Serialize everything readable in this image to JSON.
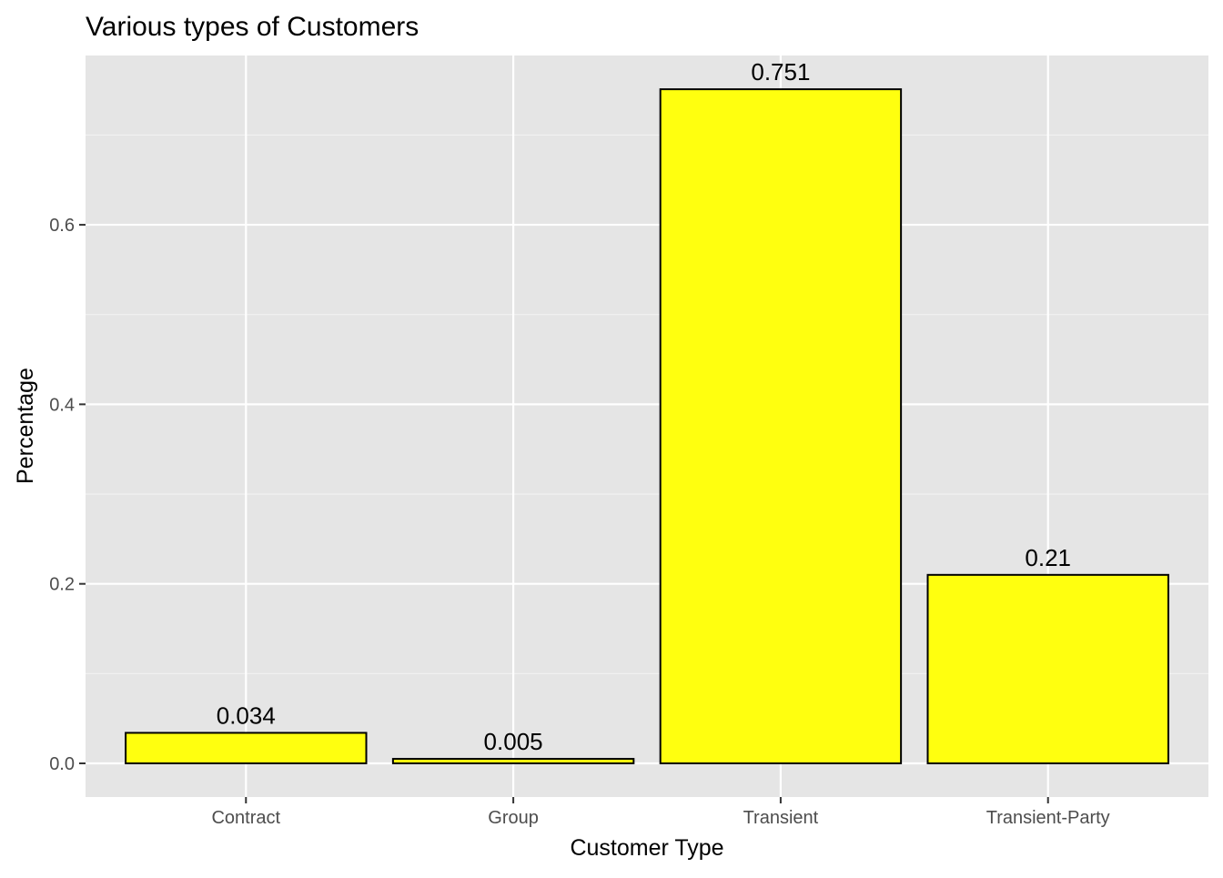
{
  "chart_data": {
    "type": "bar",
    "title": "Various types of Customers",
    "xlabel": "Customer Type",
    "ylabel": "Percentage",
    "categories": [
      "Contract",
      "Group",
      "Transient",
      "Transient-Party"
    ],
    "values": [
      0.034,
      0.005,
      0.751,
      0.21
    ],
    "data_labels": [
      "0.034",
      "0.005",
      "0.751",
      "0.21"
    ],
    "yticks": [
      0.0,
      0.2,
      0.4,
      0.6
    ],
    "ytick_labels": [
      "0.0",
      "0.2",
      "0.4",
      "0.6"
    ],
    "ylim": [
      -0.0375,
      0.7886
    ],
    "grid": true,
    "colors": {
      "bar_fill": "#ffff0f",
      "bar_stroke": "#000000",
      "panel_background": "#e5e5e5",
      "grid_major": "#ffffff",
      "grid_minor": "#f2f2f2"
    }
  }
}
